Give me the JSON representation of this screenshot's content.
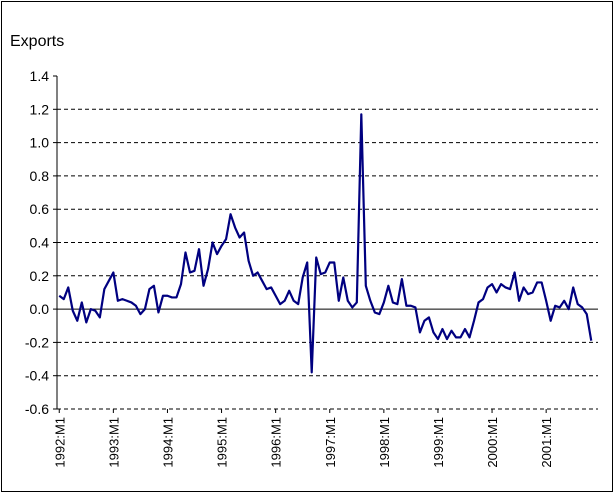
{
  "chart_data": {
    "type": "line",
    "title": "Exports",
    "categories": [
      "1992:M1",
      null,
      null,
      null,
      null,
      null,
      null,
      null,
      null,
      null,
      null,
      null,
      "1993:M1",
      null,
      null,
      null,
      null,
      null,
      null,
      null,
      null,
      null,
      null,
      null,
      "1994:M1",
      null,
      null,
      null,
      null,
      null,
      null,
      null,
      null,
      null,
      null,
      null,
      "1995:M1",
      null,
      null,
      null,
      null,
      null,
      null,
      null,
      null,
      null,
      null,
      null,
      "1996:M1",
      null,
      null,
      null,
      null,
      null,
      null,
      null,
      null,
      null,
      null,
      null,
      "1997:M1",
      null,
      null,
      null,
      null,
      null,
      null,
      null,
      null,
      null,
      null,
      null,
      "1998:M1",
      null,
      null,
      null,
      null,
      null,
      null,
      null,
      null,
      null,
      null,
      null,
      "1999:M1",
      null,
      null,
      null,
      null,
      null,
      null,
      null,
      null,
      null,
      null,
      null,
      "2000:M1",
      null,
      null,
      null,
      null,
      null,
      null,
      null,
      null,
      null,
      null,
      null,
      "2001:M1",
      null,
      null,
      null,
      null,
      null,
      null,
      null,
      null,
      null,
      null,
      null
    ],
    "series": [
      {
        "name": "Exports",
        "color": "#000080",
        "values": [
          0.08,
          0.06,
          0.13,
          -0.01,
          -0.07,
          0.04,
          -0.08,
          0.0,
          -0.01,
          -0.05,
          0.12,
          0.17,
          0.22,
          0.05,
          0.06,
          0.05,
          0.04,
          0.02,
          -0.03,
          0.0,
          0.12,
          0.14,
          -0.02,
          0.08,
          0.08,
          0.07,
          0.07,
          0.15,
          0.34,
          0.22,
          0.23,
          0.36,
          0.14,
          0.24,
          0.4,
          0.33,
          0.38,
          0.42,
          0.57,
          0.49,
          0.43,
          0.46,
          0.29,
          0.2,
          0.22,
          0.17,
          0.12,
          0.13,
          0.08,
          0.03,
          0.05,
          0.11,
          0.05,
          0.03,
          0.19,
          0.28,
          -0.38,
          0.31,
          0.21,
          0.22,
          0.28,
          0.28,
          0.05,
          0.19,
          0.05,
          0.01,
          0.04,
          1.17,
          0.14,
          0.05,
          -0.02,
          -0.03,
          0.04,
          0.14,
          0.04,
          0.03,
          0.18,
          0.02,
          0.02,
          0.01,
          -0.14,
          -0.07,
          -0.05,
          -0.14,
          -0.18,
          -0.12,
          -0.18,
          -0.13,
          -0.17,
          -0.17,
          -0.12,
          -0.17,
          -0.07,
          0.04,
          0.06,
          0.13,
          0.15,
          0.1,
          0.15,
          0.13,
          0.12,
          0.22,
          0.05,
          0.13,
          0.09,
          0.1,
          0.16,
          0.16,
          0.05,
          -0.07,
          0.02,
          0.01,
          0.05,
          0.0,
          0.13,
          0.03,
          0.01,
          -0.03,
          -0.19,
          null
        ]
      }
    ],
    "ylim": [
      -0.6,
      1.4
    ],
    "yticks": [
      -0.6,
      -0.4,
      -0.2,
      {
        "value": 0,
        "label": "0.0"
      },
      0.2,
      0.4,
      0.6,
      0.8,
      {
        "value": 1,
        "label": "1.0"
      },
      1.2,
      1.4
    ],
    "grid": true
  }
}
